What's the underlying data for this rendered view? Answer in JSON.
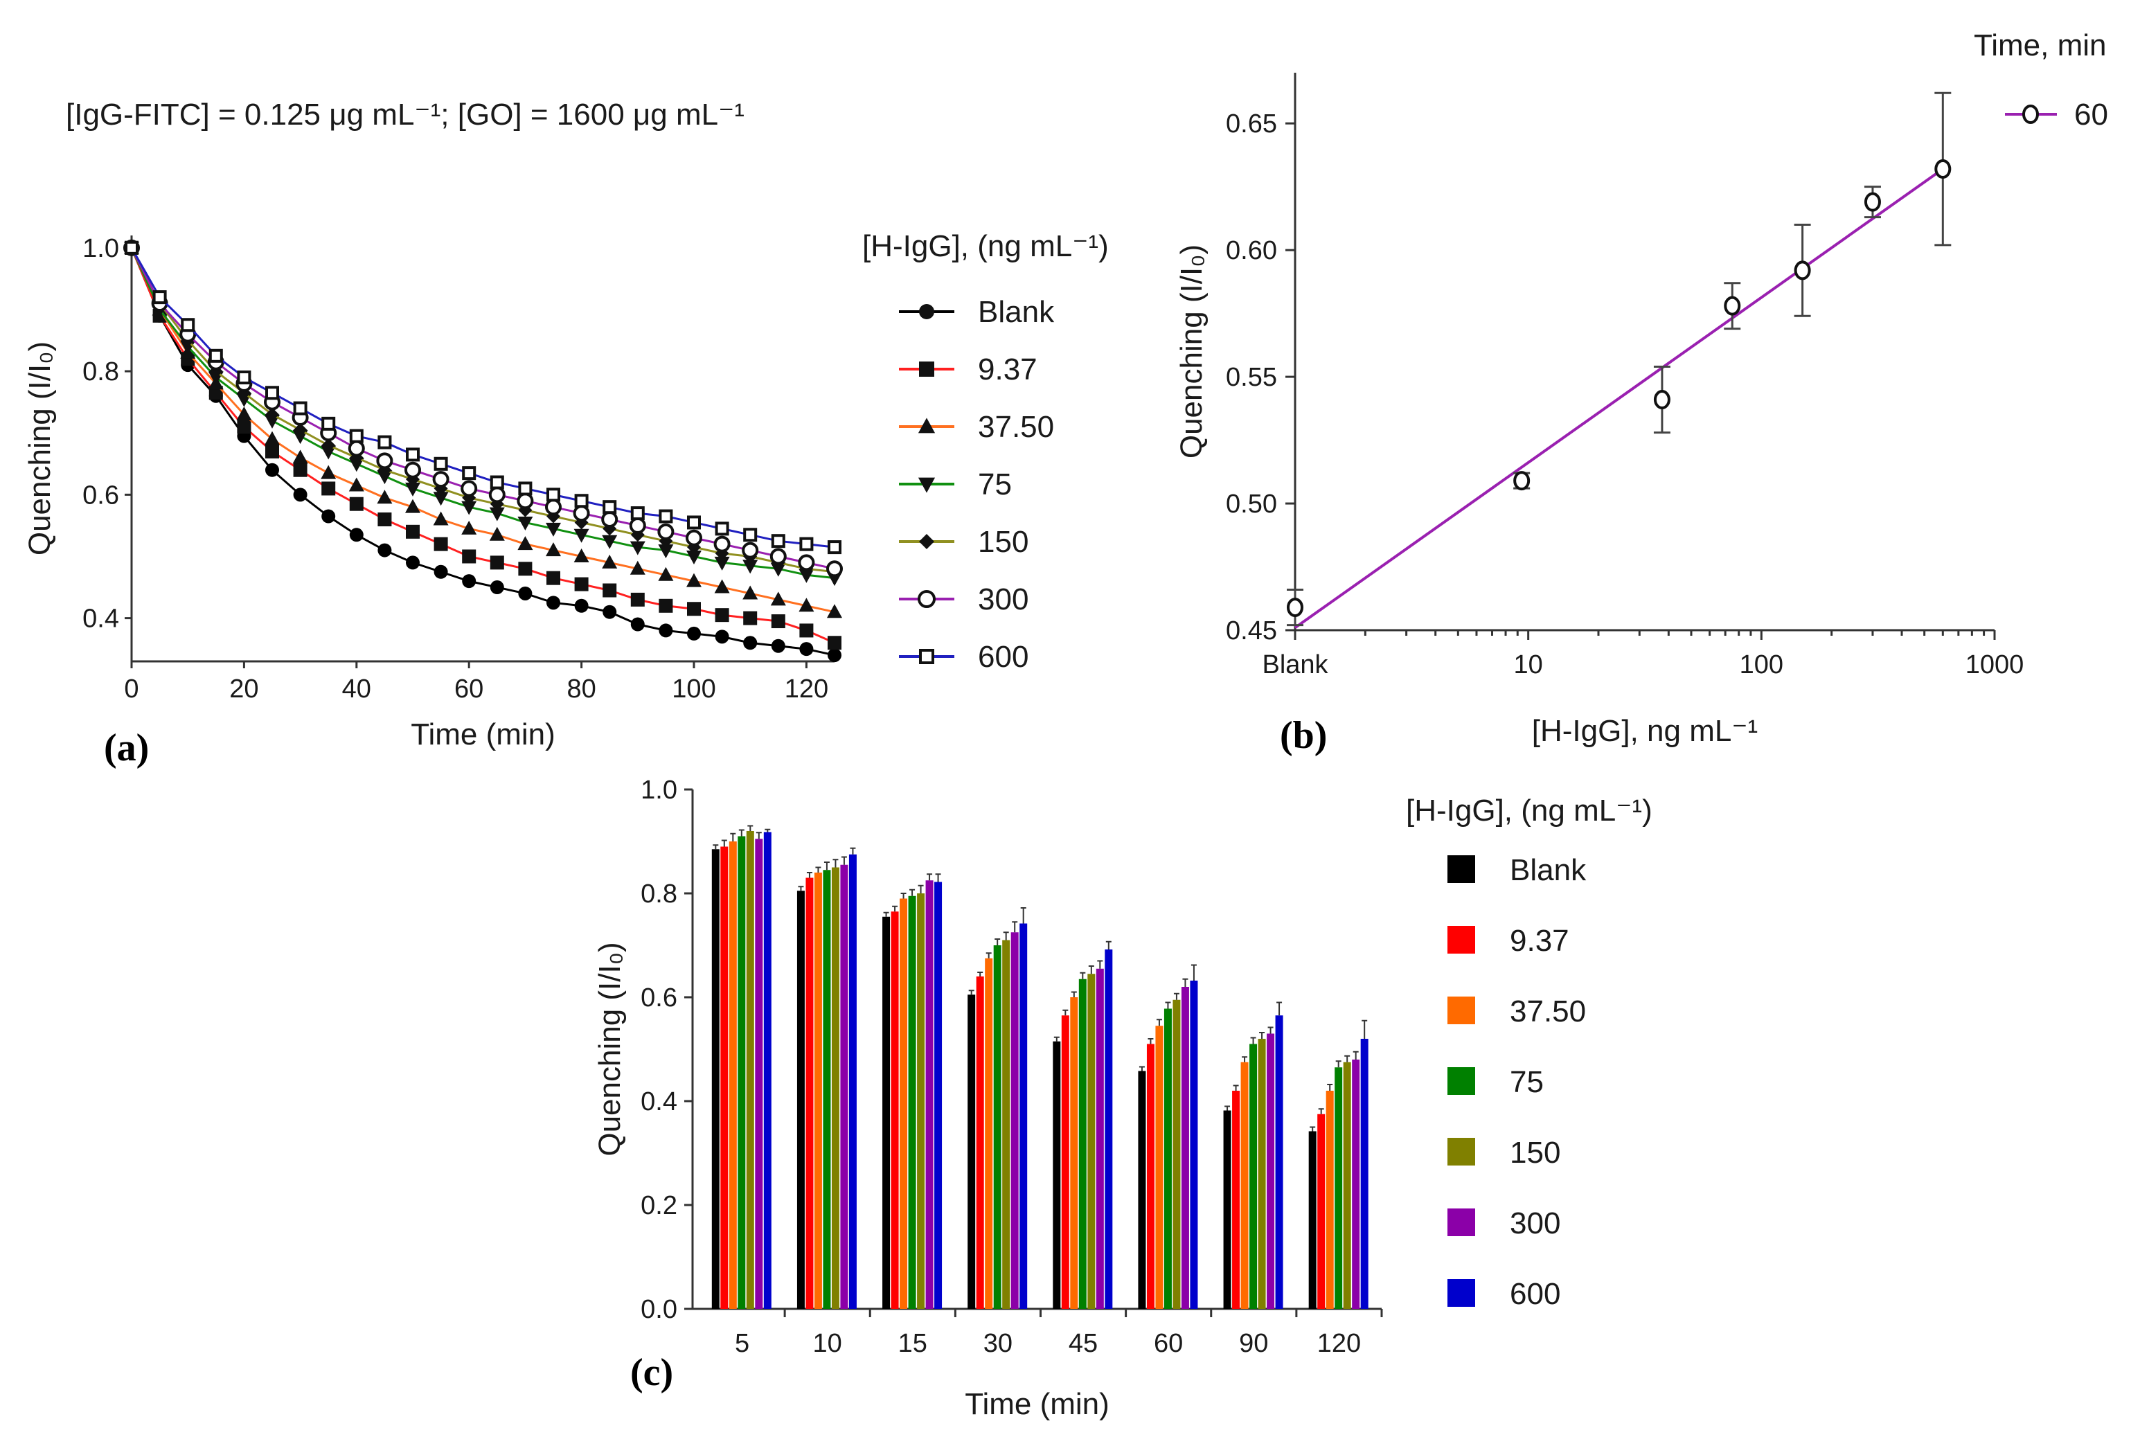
{
  "panels": {
    "a": "(a)",
    "b": "(b)",
    "c": "(c)"
  },
  "series_colors": {
    "Blank": "#000000",
    "9.37": "#ff0000",
    "37.50": "#ff6a00",
    "75": "#008000",
    "150": "#808000",
    "300": "#8b00a8",
    "600": "#0000cc"
  },
  "line_colors": {
    "Blank": "#000000",
    "9.37": "#ff2020",
    "37.50": "#ff7020",
    "75": "#109010",
    "150": "#909020",
    "300": "#9a20b0",
    "600": "#2020c0"
  },
  "markers": {
    "Blank": "circle-filled",
    "9.37": "square-filled",
    "37.50": "triangle-up-filled",
    "75": "triangle-down-filled",
    "150": "diamond-filled",
    "300": "circle-open",
    "600": "square-open"
  },
  "chart_data": [
    {
      "id": "a",
      "type": "line",
      "annotation": "[IgG-FITC] = 0.125 μg mL⁻¹; [GO] = 1600 μg mL⁻¹",
      "xlabel": "Time (min)",
      "ylabel": "Quenching (I/I₀)",
      "xlim": [
        0,
        125
      ],
      "ylim": [
        0.33,
        1.02
      ],
      "xticks": [
        0,
        20,
        40,
        60,
        80,
        100,
        120
      ],
      "yticks": [
        0.4,
        0.6,
        0.8,
        1.0
      ],
      "ytick_labels": [
        "0.4",
        "0.6",
        "0.8",
        "1.0"
      ],
      "legend_title": "[H-IgG], (ng mL⁻¹)",
      "legend_position": "right",
      "x": [
        0,
        5,
        10,
        15,
        20,
        25,
        30,
        35,
        40,
        45,
        50,
        55,
        60,
        65,
        70,
        75,
        80,
        85,
        90,
        95,
        100,
        105,
        110,
        115,
        120,
        125
      ],
      "series": [
        {
          "name": "Blank",
          "values": [
            1.0,
            0.89,
            0.81,
            0.76,
            0.695,
            0.64,
            0.6,
            0.565,
            0.535,
            0.51,
            0.49,
            0.475,
            0.46,
            0.45,
            0.44,
            0.425,
            0.42,
            0.41,
            0.39,
            0.38,
            0.375,
            0.37,
            0.36,
            0.355,
            0.35,
            0.34
          ]
        },
        {
          "name": "9.37",
          "values": [
            1.0,
            0.89,
            0.82,
            0.765,
            0.71,
            0.67,
            0.64,
            0.61,
            0.585,
            0.56,
            0.54,
            0.52,
            0.5,
            0.49,
            0.48,
            0.465,
            0.455,
            0.445,
            0.43,
            0.42,
            0.415,
            0.405,
            0.4,
            0.395,
            0.38,
            0.36
          ]
        },
        {
          "name": "37.50",
          "values": [
            1.0,
            0.9,
            0.83,
            0.78,
            0.73,
            0.69,
            0.66,
            0.635,
            0.615,
            0.595,
            0.58,
            0.56,
            0.545,
            0.535,
            0.52,
            0.51,
            0.5,
            0.49,
            0.48,
            0.47,
            0.46,
            0.45,
            0.44,
            0.43,
            0.42,
            0.41
          ]
        },
        {
          "name": "75",
          "values": [
            1.0,
            0.9,
            0.84,
            0.79,
            0.755,
            0.72,
            0.695,
            0.67,
            0.65,
            0.63,
            0.61,
            0.595,
            0.58,
            0.57,
            0.555,
            0.545,
            0.535,
            0.525,
            0.515,
            0.51,
            0.5,
            0.49,
            0.485,
            0.48,
            0.47,
            0.465
          ]
        },
        {
          "name": "150",
          "values": [
            1.0,
            0.91,
            0.85,
            0.8,
            0.765,
            0.73,
            0.705,
            0.68,
            0.66,
            0.64,
            0.625,
            0.61,
            0.595,
            0.585,
            0.575,
            0.565,
            0.555,
            0.545,
            0.535,
            0.525,
            0.515,
            0.505,
            0.5,
            0.49,
            0.48,
            0.475
          ]
        },
        {
          "name": "300",
          "values": [
            1.0,
            0.91,
            0.86,
            0.815,
            0.78,
            0.75,
            0.725,
            0.7,
            0.675,
            0.655,
            0.64,
            0.625,
            0.61,
            0.6,
            0.59,
            0.58,
            0.57,
            0.56,
            0.55,
            0.54,
            0.53,
            0.52,
            0.51,
            0.5,
            0.49,
            0.48
          ]
        },
        {
          "name": "600",
          "values": [
            1.0,
            0.92,
            0.875,
            0.825,
            0.79,
            0.765,
            0.74,
            0.715,
            0.695,
            0.685,
            0.665,
            0.65,
            0.635,
            0.62,
            0.61,
            0.6,
            0.59,
            0.58,
            0.57,
            0.565,
            0.555,
            0.545,
            0.535,
            0.525,
            0.52,
            0.515
          ]
        }
      ]
    },
    {
      "id": "b",
      "type": "scatter",
      "xlabel": "[H-IgG], ng mL⁻¹",
      "ylabel": "Quenching (I/I₀)",
      "xscale": "log",
      "xlim": [
        1,
        1000
      ],
      "ylim": [
        0.45,
        0.67
      ],
      "xticks": [
        1,
        10,
        100,
        1000
      ],
      "xtick_labels": [
        "Blank",
        "10",
        "100",
        "1000"
      ],
      "yticks": [
        0.45,
        0.5,
        0.55,
        0.6,
        0.65
      ],
      "ytick_labels": [
        "0.45",
        "0.50",
        "0.55",
        "0.60",
        "0.65"
      ],
      "legend_title": "Time, min",
      "legend_label": "60",
      "legend_position": "top-right",
      "color": "#9a20b0",
      "x": [
        1,
        9.37,
        37.5,
        75,
        150,
        300,
        600
      ],
      "y": [
        0.459,
        0.509,
        0.541,
        0.578,
        0.592,
        0.619,
        0.632
      ],
      "yerr": [
        0.007,
        0.003,
        0.013,
        0.009,
        0.018,
        0.006,
        0.03
      ],
      "fit": {
        "x": [
          1,
          600
        ],
        "y": [
          0.451,
          0.632
        ]
      }
    },
    {
      "id": "c",
      "type": "bar",
      "xlabel": "Time (min)",
      "ylabel": "Quenching (I/I₀)",
      "ylim": [
        0,
        1.0
      ],
      "yticks": [
        0,
        0.2,
        0.4,
        0.6,
        0.8,
        1.0
      ],
      "ytick_labels": [
        "0.0",
        "0.2",
        "0.4",
        "0.6",
        "0.8",
        "1.0"
      ],
      "categories": [
        "5",
        "10",
        "15",
        "30",
        "45",
        "60",
        "90",
        "120"
      ],
      "legend_title": "[H-IgG], (ng mL⁻¹)",
      "legend_position": "right",
      "series": [
        {
          "name": "Blank",
          "values": [
            0.885,
            0.805,
            0.755,
            0.605,
            0.515,
            0.458,
            0.382,
            0.342
          ],
          "err": [
            0.008,
            0.008,
            0.008,
            0.008,
            0.008,
            0.008,
            0.008,
            0.008
          ]
        },
        {
          "name": "9.37",
          "values": [
            0.89,
            0.83,
            0.765,
            0.64,
            0.565,
            0.51,
            0.42,
            0.375
          ],
          "err": [
            0.012,
            0.01,
            0.01,
            0.008,
            0.01,
            0.01,
            0.01,
            0.01
          ]
        },
        {
          "name": "37.50",
          "values": [
            0.9,
            0.84,
            0.79,
            0.675,
            0.6,
            0.545,
            0.475,
            0.42
          ],
          "err": [
            0.015,
            0.01,
            0.01,
            0.01,
            0.01,
            0.012,
            0.01,
            0.012
          ]
        },
        {
          "name": "75",
          "values": [
            0.91,
            0.845,
            0.795,
            0.7,
            0.635,
            0.578,
            0.51,
            0.465
          ],
          "err": [
            0.012,
            0.015,
            0.012,
            0.012,
            0.012,
            0.012,
            0.012,
            0.012
          ]
        },
        {
          "name": "150",
          "values": [
            0.92,
            0.85,
            0.8,
            0.71,
            0.645,
            0.595,
            0.52,
            0.475
          ],
          "err": [
            0.01,
            0.015,
            0.015,
            0.015,
            0.015,
            0.012,
            0.012,
            0.012
          ]
        },
        {
          "name": "300",
          "values": [
            0.905,
            0.855,
            0.825,
            0.725,
            0.655,
            0.62,
            0.53,
            0.48
          ],
          "err": [
            0.012,
            0.015,
            0.012,
            0.02,
            0.015,
            0.015,
            0.012,
            0.015
          ]
        },
        {
          "name": "600",
          "values": [
            0.918,
            0.875,
            0.822,
            0.742,
            0.692,
            0.632,
            0.565,
            0.52
          ],
          "err": [
            0.005,
            0.012,
            0.015,
            0.03,
            0.015,
            0.03,
            0.025,
            0.035
          ]
        }
      ]
    }
  ]
}
